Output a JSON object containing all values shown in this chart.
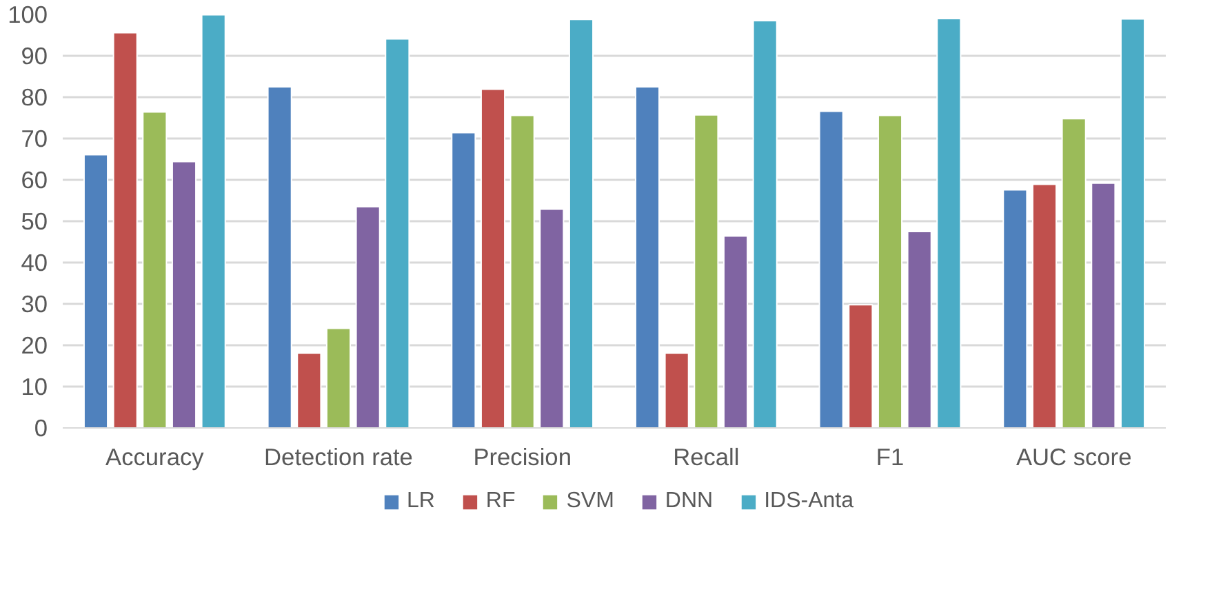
{
  "chart_data": {
    "type": "bar",
    "categories": [
      "Accuracy",
      "Detection rate",
      "Precision",
      "Recall",
      "F1",
      "AUC score"
    ],
    "series": [
      {
        "name": "LR",
        "color": "#4f81bd",
        "values": [
          66.1,
          82.5,
          71.4,
          82.5,
          76.6,
          57.6
        ]
      },
      {
        "name": "RF",
        "color": "#c0504d",
        "values": [
          95.6,
          18.1,
          81.9,
          18.1,
          29.8,
          58.9
        ]
      },
      {
        "name": "SVM",
        "color": "#9bbb59",
        "values": [
          76.4,
          24.1,
          75.6,
          75.7,
          75.6,
          74.8
        ]
      },
      {
        "name": "DNN",
        "color": "#8064a2",
        "values": [
          64.4,
          53.5,
          52.9,
          46.4,
          47.5,
          59.2
        ]
      },
      {
        "name": "IDS-Anta",
        "color": "#4bacc6",
        "values": [
          99.9,
          94.1,
          98.8,
          98.5,
          99.0,
          98.9
        ]
      }
    ],
    "ylim": [
      0,
      100
    ],
    "yticks": [
      0,
      10,
      20,
      30,
      40,
      50,
      60,
      70,
      80,
      90,
      100
    ],
    "grid": "y",
    "legend": "bottom"
  }
}
